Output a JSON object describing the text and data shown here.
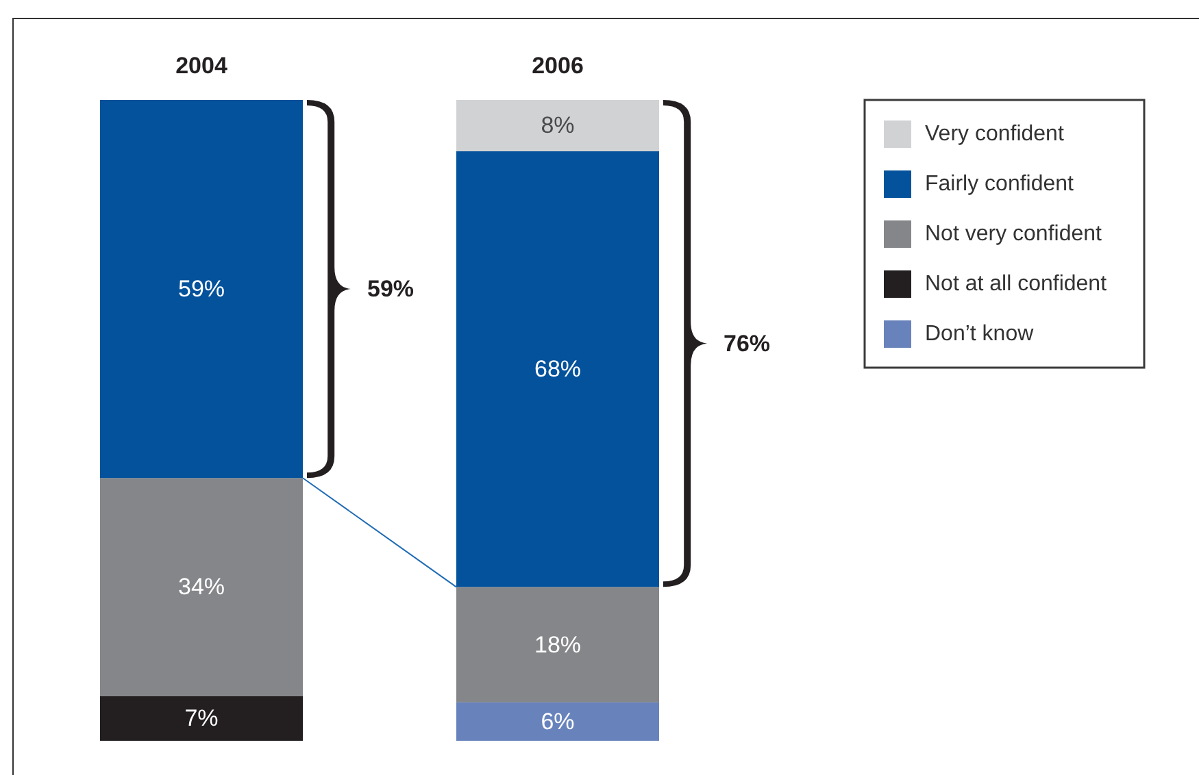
{
  "chart_data": {
    "type": "bar",
    "categories": [
      "2004",
      "2006"
    ],
    "stacked": true,
    "tick_labels": "x",
    "legend": "top right",
    "series": [
      {
        "name": "Don’t know",
        "color": "#6883bc",
        "values": [
          null,
          6
        ],
        "value_labels": [
          null,
          "6%"
        ]
      },
      {
        "name": "Not at all confident",
        "color": "#231f20",
        "values": [
          7,
          null
        ],
        "value_labels": [
          "7%",
          null
        ]
      },
      {
        "name": "Not very confident",
        "color": "#858689",
        "values": [
          34,
          18
        ],
        "value_labels": [
          "34%",
          "18%"
        ]
      },
      {
        "name": "Fairly confident",
        "color": "#03529b",
        "values": [
          59,
          68
        ],
        "value_labels": [
          "59%",
          "68%"
        ]
      },
      {
        "name": "Very confident",
        "color": "#d1d2d4",
        "values": [
          null,
          8
        ],
        "value_labels": [
          null,
          "8%"
        ]
      }
    ],
    "annotations": [
      "59%",
      "76%"
    ]
  }
}
